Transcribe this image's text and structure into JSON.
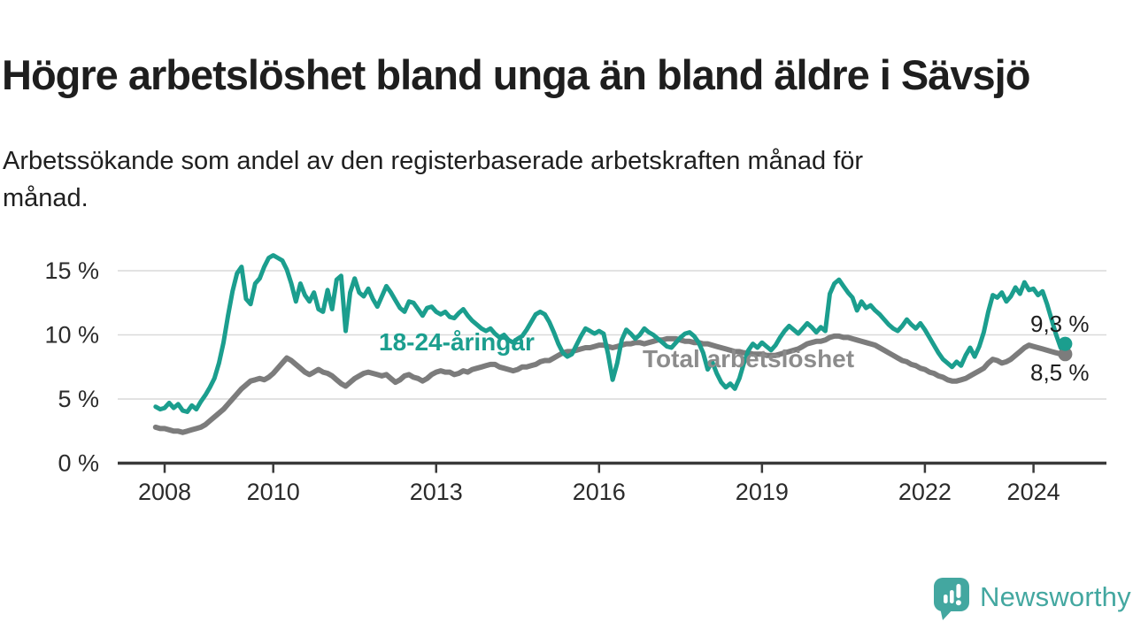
{
  "header": {
    "title": "Högre arbetslöshet bland unga än bland äldre i Sävsjö",
    "subtitle_line1": "Arbetssökande som andel av den registerbaserade arbetskraften månad för",
    "subtitle_line2": "månad."
  },
  "footer": {
    "brand": "Newsworthy",
    "logo_color": "#43a7a0",
    "logo_icon": "speech-bubble-bar-chart"
  },
  "chart_data": {
    "type": "line",
    "unit": "%",
    "x_start_month": "2007-11",
    "x_end_month": "2024-08",
    "x_tick_years": [
      2008,
      2010,
      2013,
      2016,
      2019,
      2022,
      2024
    ],
    "x_tick_labels": [
      "2008",
      "2010",
      "2013",
      "2016",
      "2019",
      "2022",
      "2024"
    ],
    "y_ticks": [
      0,
      5,
      10,
      15
    ],
    "y_tick_labels": [
      "0 %",
      "5 %",
      "10 %",
      "15 %"
    ],
    "ylim": [
      0,
      16.6
    ],
    "grid": "horizontal",
    "colors": {
      "youth_line": "#1b9e8e",
      "total_line": "#7c7c7c",
      "gridline": "#d9d9d9",
      "axis": "#393939",
      "end_label_text": "#1d1d1d"
    },
    "series": [
      {
        "name": "18-24-åringar",
        "slug": "18-24-aringar",
        "color": "#1b9e8e",
        "label_color": "#1b9e8e",
        "end_label": "9,3 %",
        "end_value": 9.3,
        "values": [
          4.4,
          4.2,
          4.3,
          4.7,
          4.3,
          4.6,
          4.1,
          4.0,
          4.5,
          4.2,
          4.8,
          5.3,
          5.9,
          6.6,
          7.8,
          9.4,
          11.5,
          13.4,
          14.8,
          15.3,
          12.8,
          12.4,
          14.0,
          14.4,
          15.3,
          16.0,
          16.2,
          16.0,
          15.8,
          15.1,
          14.0,
          12.6,
          14.0,
          13.1,
          12.6,
          13.3,
          12.0,
          11.8,
          13.5,
          12.0,
          14.3,
          14.6,
          10.3,
          13.3,
          14.4,
          13.3,
          13.0,
          13.6,
          12.8,
          12.2,
          13.0,
          13.8,
          13.3,
          12.7,
          12.1,
          11.8,
          12.6,
          12.5,
          12.0,
          11.5,
          12.1,
          12.2,
          11.8,
          11.6,
          11.8,
          11.4,
          11.3,
          11.7,
          12.0,
          11.5,
          11.1,
          10.8,
          10.5,
          10.3,
          10.5,
          10.1,
          9.8,
          10.0,
          9.6,
          9.4,
          9.7,
          9.9,
          10.4,
          11.0,
          11.6,
          11.8,
          11.6,
          11.0,
          10.2,
          9.3,
          8.6,
          8.3,
          8.5,
          9.2,
          9.9,
          10.5,
          10.3,
          10.1,
          10.3,
          10.1,
          8.5,
          6.5,
          7.8,
          9.6,
          10.4,
          10.1,
          9.7,
          10.0,
          10.5,
          10.2,
          10.0,
          9.7,
          9.4,
          9.1,
          9.0,
          9.4,
          9.8,
          10.1,
          10.2,
          9.9,
          9.4,
          8.6,
          7.3,
          7.9,
          7.0,
          6.3,
          5.9,
          6.2,
          5.8,
          6.6,
          7.8,
          8.8,
          9.3,
          9.0,
          9.4,
          9.1,
          8.8,
          9.2,
          9.8,
          10.3,
          10.7,
          10.4,
          10.1,
          10.5,
          10.9,
          10.6,
          10.2,
          10.6,
          10.3,
          13.2,
          14.0,
          14.3,
          13.8,
          13.3,
          12.9,
          11.9,
          12.6,
          12.1,
          12.3,
          11.9,
          11.6,
          11.2,
          10.8,
          10.5,
          10.3,
          10.7,
          11.2,
          10.8,
          10.5,
          10.9,
          10.4,
          9.8,
          9.2,
          8.6,
          8.1,
          7.8,
          7.5,
          7.9,
          7.6,
          8.4,
          9.0,
          8.3,
          9.1,
          10.2,
          11.8,
          13.1,
          12.9,
          13.3,
          12.6,
          13.0,
          13.7,
          13.2,
          14.1,
          13.5,
          13.6,
          13.1,
          13.4,
          12.4,
          11.2,
          10.0,
          9.0,
          9.3
        ]
      },
      {
        "name": "Total arbetslöshet",
        "slug": "total-arbetsloshet",
        "color": "#7c7c7c",
        "label_color": "#8c8c8c",
        "end_label": "8,5 %",
        "end_value": 8.5,
        "values": [
          2.8,
          2.7,
          2.7,
          2.6,
          2.5,
          2.5,
          2.4,
          2.5,
          2.6,
          2.7,
          2.8,
          3.0,
          3.3,
          3.6,
          3.9,
          4.2,
          4.6,
          5.0,
          5.4,
          5.8,
          6.1,
          6.4,
          6.5,
          6.6,
          6.5,
          6.7,
          7.0,
          7.4,
          7.8,
          8.2,
          8.0,
          7.7,
          7.4,
          7.1,
          6.9,
          7.1,
          7.3,
          7.1,
          7.0,
          6.8,
          6.5,
          6.2,
          6.0,
          6.3,
          6.6,
          6.8,
          7.0,
          7.1,
          7.0,
          6.9,
          6.8,
          6.9,
          6.6,
          6.3,
          6.5,
          6.8,
          6.9,
          6.7,
          6.6,
          6.4,
          6.6,
          6.9,
          7.1,
          7.2,
          7.1,
          7.1,
          6.9,
          7.0,
          7.2,
          7.1,
          7.3,
          7.4,
          7.5,
          7.6,
          7.7,
          7.7,
          7.5,
          7.4,
          7.3,
          7.2,
          7.3,
          7.5,
          7.5,
          7.6,
          7.7,
          7.9,
          8.0,
          8.0,
          8.2,
          8.4,
          8.6,
          8.7,
          8.7,
          8.8,
          8.9,
          9.0,
          9.0,
          9.1,
          9.2,
          9.2,
          9.1,
          9.0,
          9.1,
          9.2,
          9.3,
          9.3,
          9.4,
          9.4,
          9.3,
          9.4,
          9.5,
          9.6,
          9.6,
          9.7,
          9.7,
          9.7,
          9.6,
          9.5,
          9.5,
          9.4,
          9.4,
          9.3,
          9.3,
          9.2,
          9.1,
          9.0,
          8.9,
          8.8,
          8.7,
          8.7,
          8.6,
          8.6,
          8.5,
          8.5,
          8.5,
          8.4,
          8.4,
          8.4,
          8.5,
          8.6,
          8.7,
          8.8,
          8.9,
          9.1,
          9.3,
          9.4,
          9.5,
          9.5,
          9.6,
          9.8,
          9.9,
          9.9,
          9.8,
          9.8,
          9.7,
          9.6,
          9.5,
          9.4,
          9.3,
          9.2,
          9.0,
          8.8,
          8.6,
          8.4,
          8.2,
          8.0,
          7.9,
          7.7,
          7.6,
          7.4,
          7.3,
          7.1,
          7.0,
          6.8,
          6.7,
          6.5,
          6.4,
          6.4,
          6.5,
          6.6,
          6.8,
          7.0,
          7.2,
          7.4,
          7.8,
          8.1,
          8.0,
          7.8,
          7.9,
          8.1,
          8.4,
          8.7,
          9.0,
          9.2,
          9.1,
          9.0,
          8.9,
          8.8,
          8.7,
          8.6,
          8.5,
          8.5
        ]
      }
    ]
  }
}
